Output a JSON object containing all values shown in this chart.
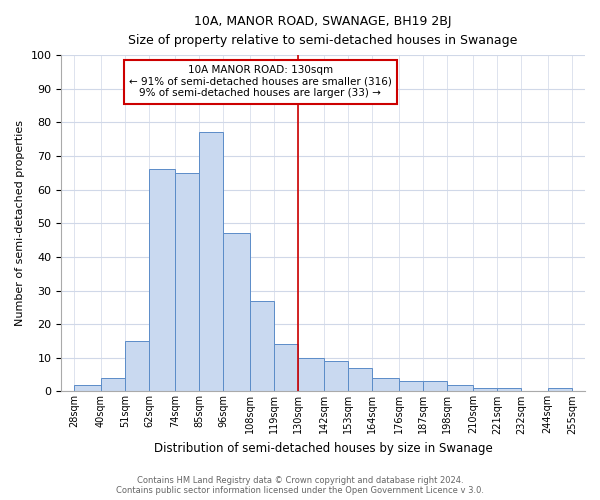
{
  "title": "10A, MANOR ROAD, SWANAGE, BH19 2BJ",
  "subtitle": "Size of property relative to semi-detached houses in Swanage",
  "xlabel": "Distribution of semi-detached houses by size in Swanage",
  "ylabel": "Number of semi-detached properties",
  "bar_left_edges": [
    28,
    40,
    51,
    62,
    74,
    85,
    96,
    108,
    119,
    130,
    142,
    153,
    164,
    176,
    187,
    198,
    210,
    221,
    232,
    244
  ],
  "bar_heights": [
    2,
    4,
    15,
    66,
    65,
    77,
    47,
    27,
    14,
    10,
    9,
    7,
    4,
    3,
    3,
    2,
    1,
    1,
    0,
    1
  ],
  "bar_widths": [
    12,
    11,
    11,
    12,
    11,
    11,
    12,
    11,
    11,
    12,
    11,
    11,
    12,
    11,
    11,
    12,
    11,
    11,
    12,
    11
  ],
  "x_tick_labels": [
    "28sqm",
    "40sqm",
    "51sqm",
    "62sqm",
    "74sqm",
    "85sqm",
    "96sqm",
    "108sqm",
    "119sqm",
    "130sqm",
    "142sqm",
    "153sqm",
    "164sqm",
    "176sqm",
    "187sqm",
    "198sqm",
    "210sqm",
    "221sqm",
    "232sqm",
    "244sqm",
    "255sqm"
  ],
  "x_tick_positions": [
    28,
    40,
    51,
    62,
    74,
    85,
    96,
    108,
    119,
    130,
    142,
    153,
    164,
    176,
    187,
    198,
    210,
    221,
    232,
    244,
    255
  ],
  "ylim": [
    0,
    100
  ],
  "xlim": [
    22,
    261
  ],
  "bar_color": "#c9d9f0",
  "bar_edge_color": "#5b8cc8",
  "vline_x": 130,
  "vline_color": "#cc0000",
  "annotation_title": "10A MANOR ROAD: 130sqm",
  "annotation_line1": "← 91% of semi-detached houses are smaller (316)",
  "annotation_line2": "9% of semi-detached houses are larger (33) →",
  "annotation_box_color": "#ffffff",
  "annotation_box_edge_color": "#cc0000",
  "footer_line1": "Contains HM Land Registry data © Crown copyright and database right 2024.",
  "footer_line2": "Contains public sector information licensed under the Open Government Licence v 3.0.",
  "background_color": "#ffffff",
  "grid_color": "#d0d8e8"
}
